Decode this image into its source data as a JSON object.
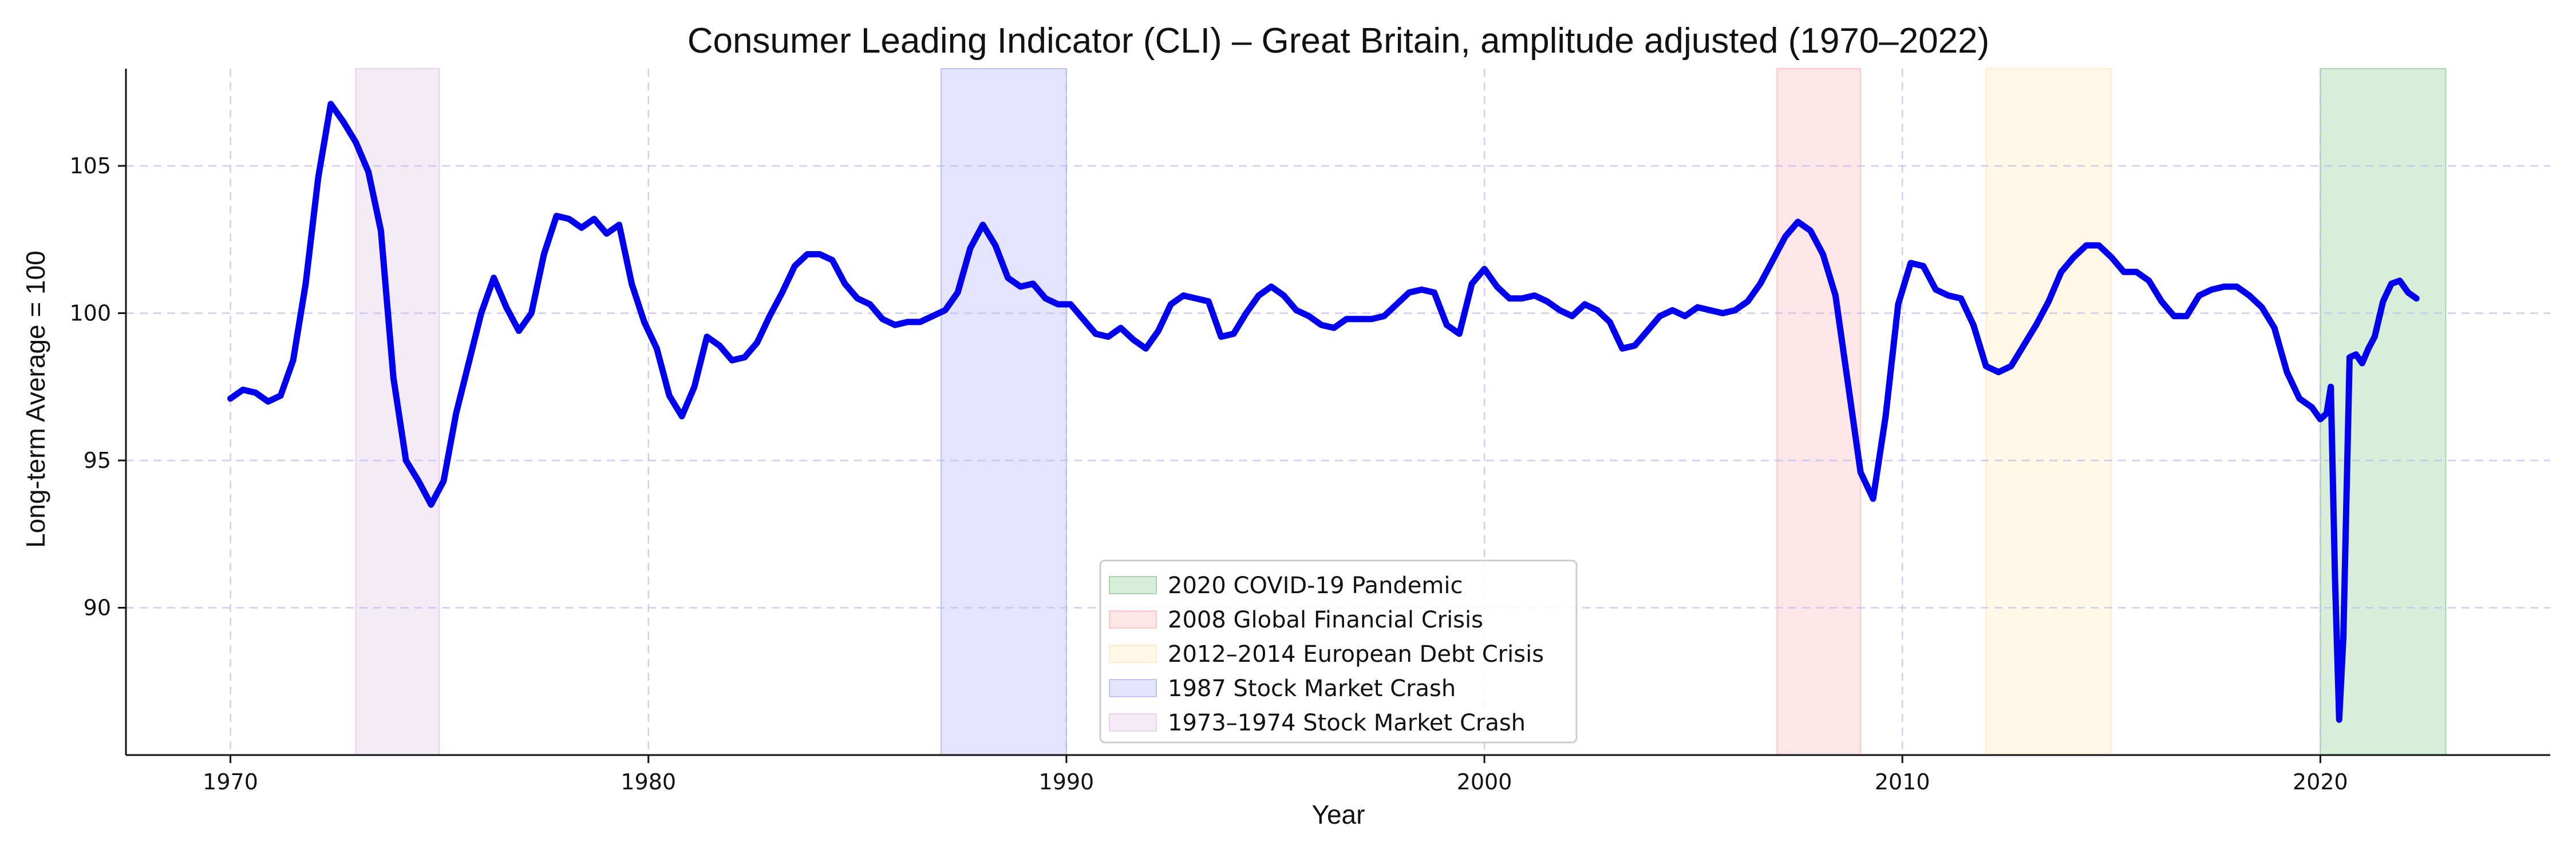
{
  "chart_data": {
    "type": "line",
    "title": "Consumer Leading Indicator (CLI) – Great Britain, amplitude adjusted (1970–2022)",
    "xlabel": "Year",
    "ylabel": "Long-term Average = 100",
    "xlim": [
      1967.5,
      2025.5
    ],
    "ylim": [
      85.0,
      108.3
    ],
    "x_ticks": [
      1970,
      1980,
      1990,
      2000,
      2010,
      2020
    ],
    "y_ticks": [
      90,
      95,
      100,
      105
    ],
    "grid": true,
    "legend_position": "lower center",
    "series": [
      {
        "color": "#0000ee",
        "points": [
          [
            1970.0,
            97.1
          ],
          [
            1970.3,
            97.4
          ],
          [
            1970.6,
            97.3
          ],
          [
            1970.9,
            97.0
          ],
          [
            1971.2,
            97.2
          ],
          [
            1971.5,
            98.4
          ],
          [
            1971.8,
            101.0
          ],
          [
            1972.1,
            104.6
          ],
          [
            1972.4,
            107.1
          ],
          [
            1972.7,
            106.5
          ],
          [
            1973.0,
            105.8
          ],
          [
            1973.3,
            104.8
          ],
          [
            1973.6,
            102.8
          ],
          [
            1973.9,
            97.8
          ],
          [
            1974.2,
            95.0
          ],
          [
            1974.5,
            94.3
          ],
          [
            1974.8,
            93.5
          ],
          [
            1975.1,
            94.3
          ],
          [
            1975.4,
            96.6
          ],
          [
            1975.7,
            98.3
          ],
          [
            1976.0,
            100.0
          ],
          [
            1976.3,
            101.2
          ],
          [
            1976.6,
            100.2
          ],
          [
            1976.9,
            99.4
          ],
          [
            1977.2,
            100.0
          ],
          [
            1977.5,
            102.0
          ],
          [
            1977.8,
            103.3
          ],
          [
            1978.1,
            103.2
          ],
          [
            1978.4,
            102.9
          ],
          [
            1978.7,
            103.2
          ],
          [
            1979.0,
            102.7
          ],
          [
            1979.3,
            103.0
          ],
          [
            1979.6,
            101.0
          ],
          [
            1979.9,
            99.7
          ],
          [
            1980.2,
            98.8
          ],
          [
            1980.5,
            97.2
          ],
          [
            1980.8,
            96.5
          ],
          [
            1981.1,
            97.5
          ],
          [
            1981.4,
            99.2
          ],
          [
            1981.7,
            98.9
          ],
          [
            1982.0,
            98.4
          ],
          [
            1982.3,
            98.5
          ],
          [
            1982.6,
            99.0
          ],
          [
            1982.9,
            99.9
          ],
          [
            1983.2,
            100.7
          ],
          [
            1983.5,
            101.6
          ],
          [
            1983.8,
            102.0
          ],
          [
            1984.1,
            102.0
          ],
          [
            1984.4,
            101.8
          ],
          [
            1984.7,
            101.0
          ],
          [
            1985.0,
            100.5
          ],
          [
            1985.3,
            100.3
          ],
          [
            1985.6,
            99.8
          ],
          [
            1985.9,
            99.6
          ],
          [
            1986.2,
            99.7
          ],
          [
            1986.5,
            99.7
          ],
          [
            1986.8,
            99.9
          ],
          [
            1987.1,
            100.1
          ],
          [
            1987.4,
            100.7
          ],
          [
            1987.7,
            102.2
          ],
          [
            1988.0,
            103.0
          ],
          [
            1988.3,
            102.3
          ],
          [
            1988.6,
            101.2
          ],
          [
            1988.9,
            100.9
          ],
          [
            1989.2,
            101.0
          ],
          [
            1989.5,
            100.5
          ],
          [
            1989.8,
            100.3
          ],
          [
            1990.1,
            100.3
          ],
          [
            1990.4,
            99.8
          ],
          [
            1990.7,
            99.3
          ],
          [
            1991.0,
            99.2
          ],
          [
            1991.3,
            99.5
          ],
          [
            1991.6,
            99.1
          ],
          [
            1991.9,
            98.8
          ],
          [
            1992.2,
            99.4
          ],
          [
            1992.5,
            100.3
          ],
          [
            1992.8,
            100.6
          ],
          [
            1993.1,
            100.5
          ],
          [
            1993.4,
            100.4
          ],
          [
            1993.7,
            99.2
          ],
          [
            1994.0,
            99.3
          ],
          [
            1994.3,
            100.0
          ],
          [
            1994.6,
            100.6
          ],
          [
            1994.9,
            100.9
          ],
          [
            1995.2,
            100.6
          ],
          [
            1995.5,
            100.1
          ],
          [
            1995.8,
            99.9
          ],
          [
            1996.1,
            99.6
          ],
          [
            1996.4,
            99.5
          ],
          [
            1996.7,
            99.8
          ],
          [
            1997.0,
            99.8
          ],
          [
            1997.3,
            99.8
          ],
          [
            1997.6,
            99.9
          ],
          [
            1997.9,
            100.3
          ],
          [
            1998.2,
            100.7
          ],
          [
            1998.5,
            100.8
          ],
          [
            1998.8,
            100.7
          ],
          [
            1999.1,
            99.6
          ],
          [
            1999.4,
            99.3
          ],
          [
            1999.7,
            101.0
          ],
          [
            2000.0,
            101.5
          ],
          [
            2000.3,
            100.9
          ],
          [
            2000.6,
            100.5
          ],
          [
            2000.9,
            100.5
          ],
          [
            2001.2,
            100.6
          ],
          [
            2001.5,
            100.4
          ],
          [
            2001.8,
            100.1
          ],
          [
            2002.1,
            99.9
          ],
          [
            2002.4,
            100.3
          ],
          [
            2002.7,
            100.1
          ],
          [
            2003.0,
            99.7
          ],
          [
            2003.3,
            98.8
          ],
          [
            2003.6,
            98.9
          ],
          [
            2003.9,
            99.4
          ],
          [
            2004.2,
            99.9
          ],
          [
            2004.5,
            100.1
          ],
          [
            2004.8,
            99.9
          ],
          [
            2005.1,
            100.2
          ],
          [
            2005.4,
            100.1
          ],
          [
            2005.7,
            100.0
          ],
          [
            2006.0,
            100.1
          ],
          [
            2006.3,
            100.4
          ],
          [
            2006.6,
            101.0
          ],
          [
            2006.9,
            101.8
          ],
          [
            2007.2,
            102.6
          ],
          [
            2007.5,
            103.1
          ],
          [
            2007.8,
            102.8
          ],
          [
            2008.1,
            102.0
          ],
          [
            2008.4,
            100.6
          ],
          [
            2008.7,
            97.6
          ],
          [
            2009.0,
            94.6
          ],
          [
            2009.3,
            93.7
          ],
          [
            2009.6,
            96.5
          ],
          [
            2009.9,
            100.3
          ],
          [
            2010.2,
            101.7
          ],
          [
            2010.5,
            101.6
          ],
          [
            2010.8,
            100.8
          ],
          [
            2011.1,
            100.6
          ],
          [
            2011.4,
            100.5
          ],
          [
            2011.7,
            99.6
          ],
          [
            2012.0,
            98.2
          ],
          [
            2012.3,
            98.0
          ],
          [
            2012.6,
            98.2
          ],
          [
            2012.9,
            98.9
          ],
          [
            2013.2,
            99.6
          ],
          [
            2013.5,
            100.4
          ],
          [
            2013.8,
            101.4
          ],
          [
            2014.1,
            101.9
          ],
          [
            2014.4,
            102.3
          ],
          [
            2014.7,
            102.3
          ],
          [
            2015.0,
            101.9
          ],
          [
            2015.3,
            101.4
          ],
          [
            2015.6,
            101.4
          ],
          [
            2015.9,
            101.1
          ],
          [
            2016.2,
            100.4
          ],
          [
            2016.5,
            99.9
          ],
          [
            2016.8,
            99.9
          ],
          [
            2017.1,
            100.6
          ],
          [
            2017.4,
            100.8
          ],
          [
            2017.7,
            100.9
          ],
          [
            2018.0,
            100.9
          ],
          [
            2018.3,
            100.6
          ],
          [
            2018.6,
            100.2
          ],
          [
            2018.9,
            99.5
          ],
          [
            2019.2,
            98.0
          ],
          [
            2019.5,
            97.1
          ],
          [
            2019.8,
            96.8
          ],
          [
            2020.0,
            96.4
          ],
          [
            2020.15,
            96.6
          ],
          [
            2020.25,
            97.5
          ],
          [
            2020.35,
            91.0
          ],
          [
            2020.45,
            86.2
          ],
          [
            2020.55,
            89.0
          ],
          [
            2020.7,
            98.5
          ],
          [
            2020.85,
            98.6
          ],
          [
            2021.0,
            98.3
          ],
          [
            2021.15,
            98.8
          ],
          [
            2021.3,
            99.2
          ],
          [
            2021.5,
            100.4
          ],
          [
            2021.7,
            101.0
          ],
          [
            2021.9,
            101.1
          ],
          [
            2022.1,
            100.7
          ],
          [
            2022.3,
            100.5
          ]
        ]
      }
    ],
    "shaded_periods": [
      {
        "label": "2020 COVID-19 Pandemic",
        "start": 2020.0,
        "end": 2023.0,
        "color": "#2ca02c"
      },
      {
        "label": "2008 Global Financial Crisis",
        "start": 2007.0,
        "end": 2009.0,
        "color": "#ff7777"
      },
      {
        "label": "2012–2014 European Debt Crisis",
        "start": 2012.0,
        "end": 2015.0,
        "color": "#ffd27f"
      },
      {
        "label": "1987 Stock Market Crash",
        "start": 1987.0,
        "end": 1990.0,
        "color": "#6a6aff"
      },
      {
        "label": "1973–1974 Stock Market Crash",
        "start": 1973.0,
        "end": 1975.0,
        "color": "#c48fd1"
      }
    ]
  }
}
